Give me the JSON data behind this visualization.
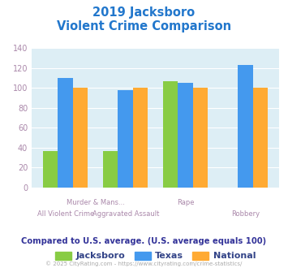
{
  "title_line1": "2019 Jacksboro",
  "title_line2": "Violent Crime Comparison",
  "title_color": "#2277cc",
  "jacksboro": [
    37,
    37,
    107,
    0
  ],
  "texas": [
    110,
    98,
    105,
    123
  ],
  "national": [
    100,
    100,
    100,
    100
  ],
  "jacksboro_color": "#88cc44",
  "texas_color": "#4499ee",
  "national_color": "#ffaa33",
  "ylim": [
    0,
    140
  ],
  "yticks": [
    0,
    20,
    40,
    60,
    80,
    100,
    120,
    140
  ],
  "plot_bg": "#ddeef5",
  "grid_color": "#ffffff",
  "footer_text": "Compared to U.S. average. (U.S. average equals 100)",
  "footer_color": "#333399",
  "copyright_text": "© 2025 CityRating.com - https://www.cityrating.com/crime-statistics/",
  "copyright_color": "#aaaaaa",
  "tick_label_color": "#aa88aa",
  "legend_label_color": "#334488",
  "legend_labels": [
    "Jacksboro",
    "Texas",
    "National"
  ],
  "bar_width": 0.25,
  "top_xlabels": [
    [
      0.5,
      "Murder & Mans..."
    ],
    [
      2.0,
      "Rape"
    ]
  ],
  "bot_xlabels": [
    [
      0,
      "All Violent Crime"
    ],
    [
      1,
      "Aggravated Assault"
    ],
    [
      3,
      "Robbery"
    ]
  ]
}
